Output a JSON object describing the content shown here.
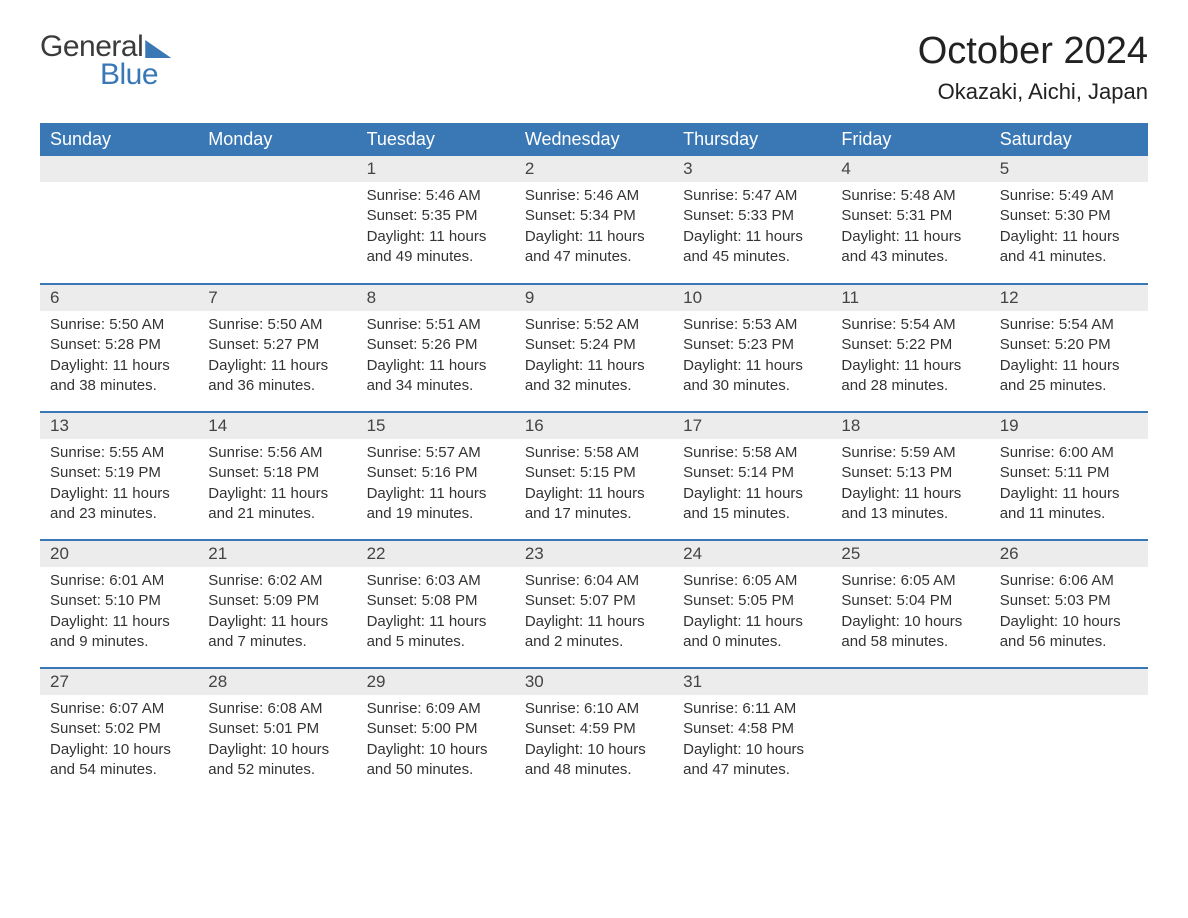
{
  "logo": {
    "general": "General",
    "blue": "Blue"
  },
  "title": {
    "month": "October 2024",
    "location": "Okazaki, Aichi, Japan"
  },
  "colors": {
    "header_bg": "#3a78b5",
    "header_text": "#ffffff",
    "daynum_bg": "#ececec",
    "text": "#333333",
    "row_divider": "#3a78b5",
    "background": "#ffffff"
  },
  "weekdays": [
    "Sunday",
    "Monday",
    "Tuesday",
    "Wednesday",
    "Thursday",
    "Friday",
    "Saturday"
  ],
  "weeks": [
    [
      {
        "day": "",
        "sunrise": "",
        "sunset": "",
        "daylight": ""
      },
      {
        "day": "",
        "sunrise": "",
        "sunset": "",
        "daylight": ""
      },
      {
        "day": "1",
        "sunrise": "Sunrise: 5:46 AM",
        "sunset": "Sunset: 5:35 PM",
        "daylight": "Daylight: 11 hours and 49 minutes."
      },
      {
        "day": "2",
        "sunrise": "Sunrise: 5:46 AM",
        "sunset": "Sunset: 5:34 PM",
        "daylight": "Daylight: 11 hours and 47 minutes."
      },
      {
        "day": "3",
        "sunrise": "Sunrise: 5:47 AM",
        "sunset": "Sunset: 5:33 PM",
        "daylight": "Daylight: 11 hours and 45 minutes."
      },
      {
        "day": "4",
        "sunrise": "Sunrise: 5:48 AM",
        "sunset": "Sunset: 5:31 PM",
        "daylight": "Daylight: 11 hours and 43 minutes."
      },
      {
        "day": "5",
        "sunrise": "Sunrise: 5:49 AM",
        "sunset": "Sunset: 5:30 PM",
        "daylight": "Daylight: 11 hours and 41 minutes."
      }
    ],
    [
      {
        "day": "6",
        "sunrise": "Sunrise: 5:50 AM",
        "sunset": "Sunset: 5:28 PM",
        "daylight": "Daylight: 11 hours and 38 minutes."
      },
      {
        "day": "7",
        "sunrise": "Sunrise: 5:50 AM",
        "sunset": "Sunset: 5:27 PM",
        "daylight": "Daylight: 11 hours and 36 minutes."
      },
      {
        "day": "8",
        "sunrise": "Sunrise: 5:51 AM",
        "sunset": "Sunset: 5:26 PM",
        "daylight": "Daylight: 11 hours and 34 minutes."
      },
      {
        "day": "9",
        "sunrise": "Sunrise: 5:52 AM",
        "sunset": "Sunset: 5:24 PM",
        "daylight": "Daylight: 11 hours and 32 minutes."
      },
      {
        "day": "10",
        "sunrise": "Sunrise: 5:53 AM",
        "sunset": "Sunset: 5:23 PM",
        "daylight": "Daylight: 11 hours and 30 minutes."
      },
      {
        "day": "11",
        "sunrise": "Sunrise: 5:54 AM",
        "sunset": "Sunset: 5:22 PM",
        "daylight": "Daylight: 11 hours and 28 minutes."
      },
      {
        "day": "12",
        "sunrise": "Sunrise: 5:54 AM",
        "sunset": "Sunset: 5:20 PM",
        "daylight": "Daylight: 11 hours and 25 minutes."
      }
    ],
    [
      {
        "day": "13",
        "sunrise": "Sunrise: 5:55 AM",
        "sunset": "Sunset: 5:19 PM",
        "daylight": "Daylight: 11 hours and 23 minutes."
      },
      {
        "day": "14",
        "sunrise": "Sunrise: 5:56 AM",
        "sunset": "Sunset: 5:18 PM",
        "daylight": "Daylight: 11 hours and 21 minutes."
      },
      {
        "day": "15",
        "sunrise": "Sunrise: 5:57 AM",
        "sunset": "Sunset: 5:16 PM",
        "daylight": "Daylight: 11 hours and 19 minutes."
      },
      {
        "day": "16",
        "sunrise": "Sunrise: 5:58 AM",
        "sunset": "Sunset: 5:15 PM",
        "daylight": "Daylight: 11 hours and 17 minutes."
      },
      {
        "day": "17",
        "sunrise": "Sunrise: 5:58 AM",
        "sunset": "Sunset: 5:14 PM",
        "daylight": "Daylight: 11 hours and 15 minutes."
      },
      {
        "day": "18",
        "sunrise": "Sunrise: 5:59 AM",
        "sunset": "Sunset: 5:13 PM",
        "daylight": "Daylight: 11 hours and 13 minutes."
      },
      {
        "day": "19",
        "sunrise": "Sunrise: 6:00 AM",
        "sunset": "Sunset: 5:11 PM",
        "daylight": "Daylight: 11 hours and 11 minutes."
      }
    ],
    [
      {
        "day": "20",
        "sunrise": "Sunrise: 6:01 AM",
        "sunset": "Sunset: 5:10 PM",
        "daylight": "Daylight: 11 hours and 9 minutes."
      },
      {
        "day": "21",
        "sunrise": "Sunrise: 6:02 AM",
        "sunset": "Sunset: 5:09 PM",
        "daylight": "Daylight: 11 hours and 7 minutes."
      },
      {
        "day": "22",
        "sunrise": "Sunrise: 6:03 AM",
        "sunset": "Sunset: 5:08 PM",
        "daylight": "Daylight: 11 hours and 5 minutes."
      },
      {
        "day": "23",
        "sunrise": "Sunrise: 6:04 AM",
        "sunset": "Sunset: 5:07 PM",
        "daylight": "Daylight: 11 hours and 2 minutes."
      },
      {
        "day": "24",
        "sunrise": "Sunrise: 6:05 AM",
        "sunset": "Sunset: 5:05 PM",
        "daylight": "Daylight: 11 hours and 0 minutes."
      },
      {
        "day": "25",
        "sunrise": "Sunrise: 6:05 AM",
        "sunset": "Sunset: 5:04 PM",
        "daylight": "Daylight: 10 hours and 58 minutes."
      },
      {
        "day": "26",
        "sunrise": "Sunrise: 6:06 AM",
        "sunset": "Sunset: 5:03 PM",
        "daylight": "Daylight: 10 hours and 56 minutes."
      }
    ],
    [
      {
        "day": "27",
        "sunrise": "Sunrise: 6:07 AM",
        "sunset": "Sunset: 5:02 PM",
        "daylight": "Daylight: 10 hours and 54 minutes."
      },
      {
        "day": "28",
        "sunrise": "Sunrise: 6:08 AM",
        "sunset": "Sunset: 5:01 PM",
        "daylight": "Daylight: 10 hours and 52 minutes."
      },
      {
        "day": "29",
        "sunrise": "Sunrise: 6:09 AM",
        "sunset": "Sunset: 5:00 PM",
        "daylight": "Daylight: 10 hours and 50 minutes."
      },
      {
        "day": "30",
        "sunrise": "Sunrise: 6:10 AM",
        "sunset": "Sunset: 4:59 PM",
        "daylight": "Daylight: 10 hours and 48 minutes."
      },
      {
        "day": "31",
        "sunrise": "Sunrise: 6:11 AM",
        "sunset": "Sunset: 4:58 PM",
        "daylight": "Daylight: 10 hours and 47 minutes."
      },
      {
        "day": "",
        "sunrise": "",
        "sunset": "",
        "daylight": ""
      },
      {
        "day": "",
        "sunrise": "",
        "sunset": "",
        "daylight": ""
      }
    ]
  ]
}
